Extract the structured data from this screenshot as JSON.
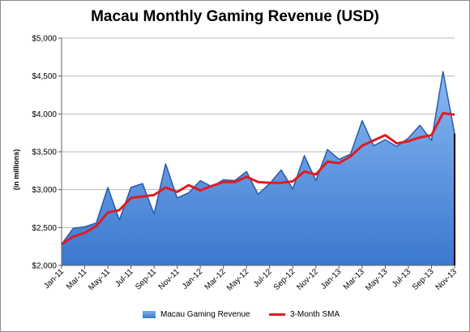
{
  "chart_data": {
    "type": "area",
    "title": "Macau Monthly Gaming Revenue (USD)",
    "ylabel": "(in millions)",
    "xlabel": "",
    "ylim": [
      2000,
      5000
    ],
    "yticks": [
      "$2,000",
      "$2,500",
      "$3,000",
      "$3,500",
      "$4,000",
      "$4,500",
      "$5,000"
    ],
    "ytick_values": [
      2000,
      2500,
      3000,
      3500,
      4000,
      4500,
      5000
    ],
    "categories": [
      "Jan-11",
      "Feb-11",
      "Mar-11",
      "Apr-11",
      "May-11",
      "Jun-11",
      "Jul-11",
      "Aug-11",
      "Sep-11",
      "Oct-11",
      "Nov-11",
      "Dec-11",
      "Jan-12",
      "Feb-12",
      "Mar-12",
      "Apr-12",
      "May-12",
      "Jun-12",
      "Jul-12",
      "Aug-12",
      "Sep-12",
      "Oct-12",
      "Nov-12",
      "Dec-12",
      "Jan-13",
      "Feb-13",
      "Mar-13",
      "Apr-13",
      "May-13",
      "Jun-13",
      "Jul-13",
      "Aug-13",
      "Sep-13",
      "Oct-13",
      "Nov-13"
    ],
    "xtick_labels": [
      "Jan-11",
      "Mar-11",
      "May-11",
      "Jul-11",
      "Sep-11",
      "Nov-11",
      "Jan-12",
      "Mar-12",
      "May-12",
      "Jul-12",
      "Sep-12",
      "Nov-12",
      "Jan-13",
      "Mar-13",
      "May-13",
      "Jul-13",
      "Sep-13",
      "Nov-13"
    ],
    "series": [
      {
        "name": "Macau Gaming Revenue",
        "type": "area",
        "values": [
          2280,
          2490,
          2510,
          2560,
          3030,
          2600,
          3030,
          3080,
          2680,
          3340,
          2890,
          2960,
          3120,
          3040,
          3130,
          3120,
          3240,
          2940,
          3080,
          3260,
          3010,
          3450,
          3120,
          3530,
          3400,
          3470,
          3910,
          3580,
          3660,
          3570,
          3680,
          3850,
          3650,
          4560,
          3740
        ]
      },
      {
        "name": "3-Month SMA",
        "type": "line",
        "values": [
          2280,
          2380,
          2430,
          2520,
          2700,
          2730,
          2890,
          2910,
          2930,
          3030,
          2970,
          3060,
          2990,
          3050,
          3100,
          3100,
          3170,
          3100,
          3090,
          3090,
          3110,
          3240,
          3200,
          3370,
          3350,
          3440,
          3580,
          3650,
          3720,
          3610,
          3640,
          3690,
          3720,
          4010,
          3990
        ]
      }
    ],
    "colors": {
      "area_top": "#8ab8f2",
      "area_bottom": "#3a78cf",
      "sma": "#e01b24",
      "grid": "#b9b9b9"
    },
    "grid": true,
    "legend": "bottom"
  }
}
